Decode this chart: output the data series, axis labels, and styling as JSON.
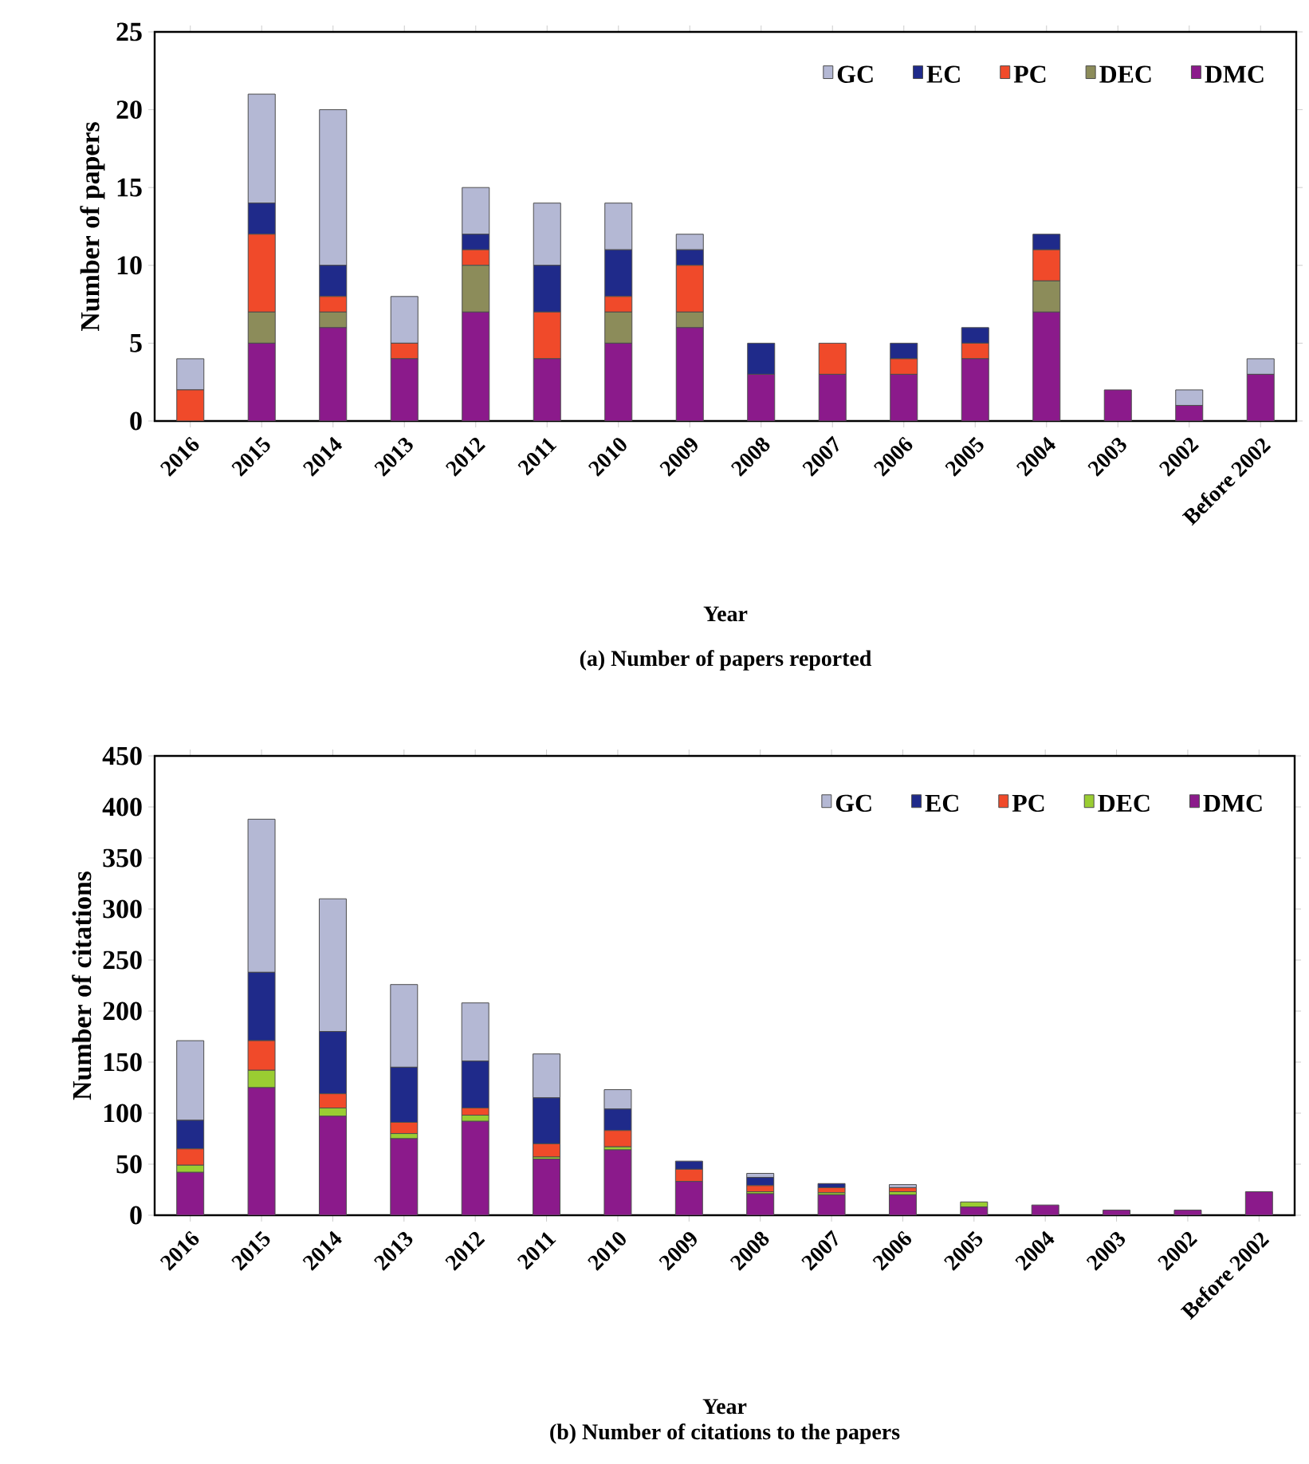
{
  "chart_data": [
    {
      "type": "bar",
      "stacked": true,
      "title": "(a) Number of papers reported",
      "xlabel": "Year",
      "ylabel": "Number of papers",
      "categories": [
        "2016",
        "2015",
        "2014",
        "2013",
        "2012",
        "2011",
        "2010",
        "2009",
        "2008",
        "2007",
        "2006",
        "2005",
        "2004",
        "2003",
        "2002",
        "Before 2002"
      ],
      "series": [
        {
          "name": "DMC",
          "color": "#8b1a8b",
          "values": [
            0,
            5,
            6,
            4,
            7,
            4,
            5,
            6,
            3,
            3,
            3,
            4,
            7,
            2,
            1,
            3
          ]
        },
        {
          "name": "DEC",
          "color": "#8c8c5a",
          "values": [
            0,
            2,
            1,
            0,
            3,
            0,
            2,
            1,
            0,
            0,
            0,
            0,
            2,
            0,
            0,
            0
          ]
        },
        {
          "name": "PC",
          "color": "#f04a2a",
          "values": [
            2,
            5,
            1,
            1,
            1,
            3,
            1,
            3,
            0,
            2,
            1,
            1,
            2,
            0,
            0,
            0
          ]
        },
        {
          "name": "EC",
          "color": "#1f2a8a",
          "values": [
            0,
            2,
            2,
            0,
            1,
            3,
            3,
            1,
            2,
            0,
            1,
            1,
            1,
            0,
            0,
            0
          ]
        },
        {
          "name": "GC",
          "color": "#b4b8d4",
          "values": [
            2,
            7,
            10,
            3,
            3,
            4,
            3,
            1,
            0,
            0,
            0,
            0,
            0,
            0,
            1,
            1
          ]
        }
      ],
      "ylim": [
        0,
        25
      ],
      "yticks": [
        0,
        5,
        10,
        15,
        20,
        25
      ],
      "legend": "top right"
    },
    {
      "type": "bar",
      "stacked": true,
      "title": "(b) Number of citations to the papers",
      "xlabel": "Year",
      "ylabel": "Number of citations",
      "categories": [
        "2016",
        "2015",
        "2014",
        "2013",
        "2012",
        "2011",
        "2010",
        "2009",
        "2008",
        "2007",
        "2006",
        "2005",
        "2004",
        "2003",
        "2002",
        "Before 2002"
      ],
      "series": [
        {
          "name": "DMC",
          "color": "#8b1a8b",
          "values": [
            42,
            125,
            97,
            75,
            92,
            55,
            64,
            33,
            21,
            20,
            20,
            8,
            10,
            5,
            5,
            23
          ]
        },
        {
          "name": "DEC",
          "color": "#9acd32",
          "values": [
            7,
            17,
            8,
            5,
            6,
            2,
            3,
            0,
            2,
            2,
            3,
            5,
            0,
            0,
            0,
            0
          ]
        },
        {
          "name": "PC",
          "color": "#f04a2a",
          "values": [
            16,
            29,
            14,
            11,
            7,
            13,
            16,
            12,
            6,
            5,
            4,
            0,
            0,
            0,
            0,
            0
          ]
        },
        {
          "name": "EC",
          "color": "#1f2a8a",
          "values": [
            28,
            67,
            61,
            54,
            46,
            45,
            21,
            8,
            8,
            4,
            0,
            0,
            0,
            0,
            0,
            0
          ]
        },
        {
          "name": "GC",
          "color": "#b4b8d4",
          "values": [
            78,
            150,
            130,
            81,
            57,
            43,
            19,
            0,
            4,
            0,
            3,
            0,
            0,
            0,
            0,
            0
          ]
        }
      ],
      "ylim": [
        0,
        450
      ],
      "yticks": [
        0,
        50,
        100,
        150,
        200,
        250,
        300,
        350,
        400,
        450
      ],
      "legend": "top right"
    }
  ]
}
